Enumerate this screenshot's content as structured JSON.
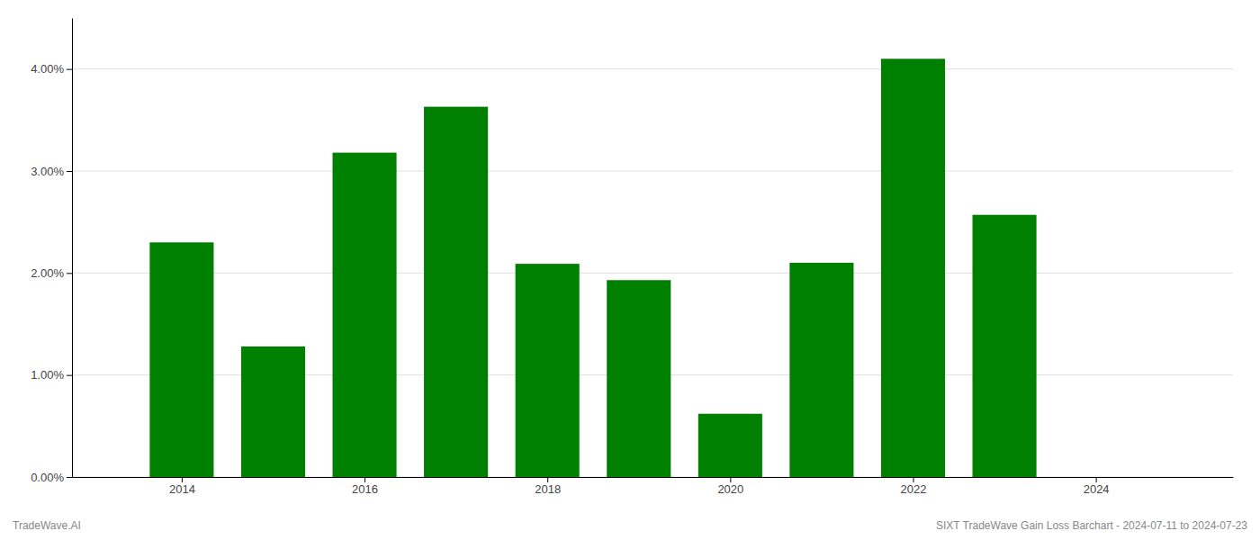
{
  "chart_data": {
    "type": "bar",
    "x": [
      2014,
      2015,
      2016,
      2017,
      2018,
      2019,
      2020,
      2021,
      2022,
      2023
    ],
    "values": [
      0.023,
      0.0128,
      0.0318,
      0.0363,
      0.0209,
      0.0193,
      0.0062,
      0.021,
      0.041,
      0.0257
    ],
    "color": "#008000",
    "xlim": [
      2012.8,
      2025.5
    ],
    "xticks": [
      2014,
      2016,
      2018,
      2020,
      2022,
      2024
    ],
    "ylim": [
      0.0,
      0.045
    ],
    "yticks": [
      {
        "value": 0.0,
        "label": "0.00%"
      },
      {
        "value": 0.01,
        "label": "1.00%"
      },
      {
        "value": 0.02,
        "label": "2.00%"
      },
      {
        "value": 0.03,
        "label": "3.00%"
      },
      {
        "value": 0.04,
        "label": "4.00%"
      }
    ],
    "grid": true,
    "annotations": [
      "TradeWave.AI",
      "SIXT TradeWave Gain Loss Barchart - 2024-07-11 to 2024-07-23"
    ]
  }
}
